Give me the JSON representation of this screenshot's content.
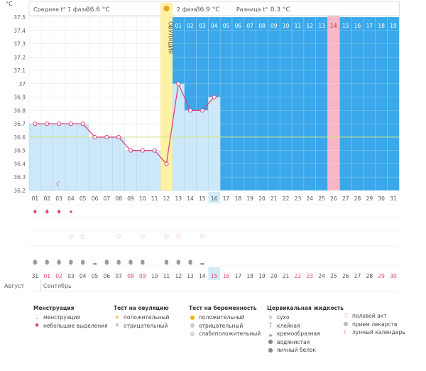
{
  "header": {
    "phase1_label": "Средняя t° 1 фаза",
    "phase1_value": "36.6 °C",
    "phase2_label": "2 фаза",
    "phase2_value": "36.9 °C",
    "diff_label": "Разница t°",
    "diff_value": "0.3 °C",
    "unit": "°C"
  },
  "colors": {
    "line": "#e0457b",
    "fill": "#cde8f8",
    "luteal_bg": "#3aa8ea",
    "ovulation": "#fdf1a6",
    "expected": "#f7b7c6",
    "coverline": "#c9e87a",
    "current_day": "#d4ebf7"
  },
  "chart_data": {
    "type": "line",
    "ylabel": "°C",
    "ylim": [
      36.2,
      37.5
    ],
    "yticks": [
      "37.5",
      "37.4",
      "37.3",
      "37.2",
      "37.1",
      "37",
      "36.9",
      "36.8",
      "36.7",
      "36.6",
      "36.5",
      "36.4",
      "36.3",
      "36.2"
    ],
    "cycle_days": [
      "01",
      "02",
      "03",
      "04",
      "05",
      "06",
      "07",
      "08",
      "09",
      "10",
      "11",
      "12",
      "13",
      "14",
      "15",
      "16",
      "17",
      "18",
      "19",
      "20",
      "21",
      "22",
      "23",
      "24",
      "25",
      "26",
      "27",
      "28",
      "29",
      "30",
      "31"
    ],
    "temperature": [
      36.7,
      36.7,
      36.7,
      36.7,
      36.7,
      36.6,
      36.6,
      36.6,
      36.5,
      36.5,
      36.5,
      36.4,
      37.0,
      36.8,
      36.8,
      36.9
    ],
    "coverline": 36.6,
    "ovulation_label": "ОВУЛЯЦИЯ",
    "ovulation_day": 12,
    "current_day": 16,
    "luteal_days": [
      "01",
      "02",
      "03",
      "04",
      "05",
      "06",
      "07",
      "08",
      "09",
      "10",
      "11",
      "12",
      "13",
      "14",
      "15",
      "16",
      "17",
      "18",
      "19"
    ],
    "expected_period_luteal_day": "14",
    "calendar_dates": [
      "31",
      "01",
      "02",
      "03",
      "04",
      "05",
      "06",
      "07",
      "08",
      "09",
      "10",
      "11",
      "12",
      "13",
      "14",
      "15",
      "16",
      "17",
      "18",
      "19",
      "20",
      "21",
      "22",
      "23",
      "24",
      "25",
      "26",
      "27",
      "28",
      "29",
      "30"
    ],
    "weekend_dates": [
      "01",
      "02",
      "08",
      "09",
      "15",
      "16",
      "22",
      "23",
      "29",
      "30"
    ],
    "month_prev": "Август",
    "month_next": "Сентябрь",
    "menstruation": [
      "heavy",
      "heavy",
      "heavy",
      "light",
      "",
      "",
      "",
      "",
      "",
      "",
      "",
      "",
      "",
      "",
      "",
      "",
      "",
      "",
      "",
      "",
      "",
      "",
      "",
      "",
      "",
      "",
      "",
      "",
      "",
      "",
      ""
    ],
    "intercourse": [
      "",
      "",
      "",
      "heart",
      "heart",
      "",
      "",
      "heart",
      "",
      "heart",
      "",
      "heart",
      "heart",
      "",
      "heart",
      "",
      "",
      "",
      "",
      "",
      "",
      "",
      "",
      "",
      "",
      "",
      "",
      "",
      "",
      "",
      ""
    ],
    "lunar": [
      "",
      "",
      "moon",
      "",
      "",
      "",
      "",
      "",
      "",
      "",
      "",
      "",
      "",
      "",
      "",
      "",
      "",
      "",
      "",
      "",
      "",
      "",
      "",
      "",
      "",
      "",
      "",
      "",
      "",
      "",
      ""
    ],
    "mucus": [
      "drop",
      "drop",
      "drop",
      "drop",
      "drop",
      "creamy",
      "drop",
      "drop",
      "drop",
      "drop",
      "",
      "drop",
      "drop",
      "drop",
      "creamy",
      "",
      "",
      "",
      "",
      "",
      "",
      "",
      "",
      "",
      "",
      "",
      "",
      "",
      "",
      "",
      ""
    ]
  },
  "legend": {
    "menstruation": {
      "title": "Менструация",
      "items": [
        "менструация",
        "небольшие выделения"
      ]
    },
    "ovulation_test": {
      "title": "Тест на овуляцию",
      "items": [
        "положительный",
        "отрицательный"
      ]
    },
    "pregnancy_test": {
      "title": "Тест на беременность",
      "items": [
        "положительный",
        "отрицательный",
        "слабоположительный"
      ]
    },
    "mucus": {
      "title": "Цервикальная жидкость",
      "items": [
        "сухо",
        "клейкая",
        "кремообразная",
        "водянистая",
        "яичный белок"
      ]
    },
    "other": {
      "items": [
        "половой акт",
        "прием лекарств",
        "лунный календарь"
      ]
    }
  }
}
